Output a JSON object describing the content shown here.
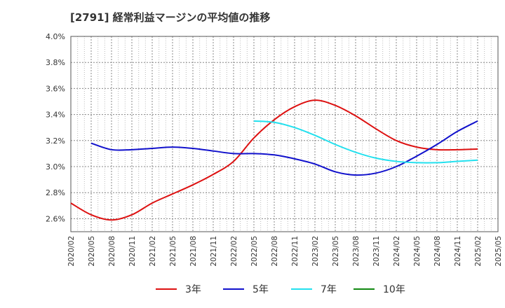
{
  "chart_data": {
    "type": "line",
    "title": "[2791]  経常利益マージンの平均値の推移",
    "xlabel": "",
    "ylabel": "",
    "x_ticks": [
      "2020/02",
      "2020/05",
      "2020/08",
      "2020/11",
      "2021/02",
      "2021/05",
      "2021/08",
      "2021/11",
      "2022/02",
      "2022/05",
      "2022/08",
      "2022/11",
      "2023/02",
      "2023/05",
      "2023/08",
      "2023/11",
      "2024/02",
      "2024/05",
      "2024/08",
      "2024/11",
      "2025/02",
      "2025/05"
    ],
    "y_ticks": [
      "2.6%",
      "2.8%",
      "3.0%",
      "3.2%",
      "3.4%",
      "3.6%",
      "3.8%",
      "4.0%"
    ],
    "ylim": [
      2.5,
      4.0
    ],
    "grid": true,
    "legend_position": "bottom",
    "series": [
      {
        "name": "3年",
        "color": "#dd1111",
        "x": [
          "2020/02",
          "2020/05",
          "2020/08",
          "2020/11",
          "2021/02",
          "2021/05",
          "2021/08",
          "2021/11",
          "2022/02",
          "2022/05",
          "2022/08",
          "2022/11",
          "2023/02",
          "2023/05",
          "2023/08",
          "2023/11",
          "2024/02",
          "2024/05",
          "2024/08",
          "2024/11",
          "2025/02"
        ],
        "values": [
          2.72,
          2.63,
          2.59,
          2.63,
          2.72,
          2.79,
          2.86,
          2.94,
          3.04,
          3.22,
          3.36,
          3.46,
          3.51,
          3.47,
          3.39,
          3.29,
          3.2,
          3.15,
          3.13,
          3.13,
          3.135
        ]
      },
      {
        "name": "5年",
        "color": "#1111cc",
        "x": [
          "2020/05",
          "2020/08",
          "2020/11",
          "2021/02",
          "2021/05",
          "2021/08",
          "2021/11",
          "2022/02",
          "2022/05",
          "2022/08",
          "2022/11",
          "2023/02",
          "2023/05",
          "2023/08",
          "2023/11",
          "2024/02",
          "2024/05",
          "2024/08",
          "2024/11",
          "2025/02"
        ],
        "values": [
          3.18,
          3.13,
          3.13,
          3.14,
          3.15,
          3.14,
          3.12,
          3.1,
          3.1,
          3.09,
          3.06,
          3.02,
          2.96,
          2.935,
          2.95,
          3.0,
          3.08,
          3.17,
          3.27,
          3.35
        ]
      },
      {
        "name": "7年",
        "color": "#22e0ee",
        "x": [
          "2022/05",
          "2022/08",
          "2022/11",
          "2023/02",
          "2023/05",
          "2023/08",
          "2023/11",
          "2024/02",
          "2024/05",
          "2024/08",
          "2024/11",
          "2025/02"
        ],
        "values": [
          3.35,
          3.34,
          3.3,
          3.24,
          3.17,
          3.11,
          3.065,
          3.04,
          3.03,
          3.03,
          3.04,
          3.05
        ]
      },
      {
        "name": "10年",
        "color": "#118811",
        "x": [],
        "values": []
      }
    ]
  }
}
